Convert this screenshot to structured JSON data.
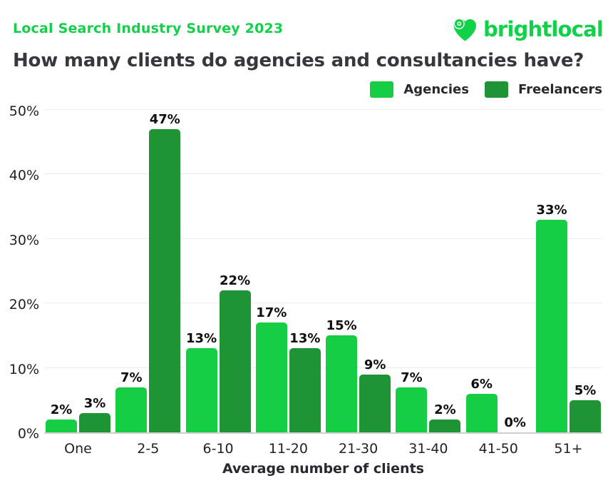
{
  "header": {
    "kicker": "Local Search Industry Survey 2023",
    "title": "How many clients do agencies and consultancies have?",
    "logo_text": "brightlocal"
  },
  "legend": [
    {
      "label": "Agencies",
      "color": "#16CE44"
    },
    {
      "label": "Freelancers",
      "color": "#1E9435"
    }
  ],
  "chart_data": {
    "type": "bar",
    "title": "How many clients do agencies and consultancies have?",
    "categories": [
      "One",
      "2-5",
      "6-10",
      "11-20",
      "21-30",
      "31-40",
      "41-50",
      "51+"
    ],
    "series": [
      {
        "name": "Agencies",
        "color": "#16CE44",
        "values": [
          2,
          7,
          13,
          17,
          15,
          7,
          6,
          33
        ]
      },
      {
        "name": "Freelancers",
        "color": "#1E9435",
        "values": [
          3,
          47,
          22,
          13,
          9,
          2,
          0,
          5
        ]
      }
    ],
    "xlabel": "Average number of clients",
    "ylabel": "",
    "ylim": [
      0,
      50
    ],
    "yticks": [
      0,
      10,
      20,
      30,
      40,
      50
    ],
    "ytick_labels": [
      "0%",
      "10%",
      "20%",
      "30%",
      "40%",
      "50%"
    ],
    "value_label_suffix": "%",
    "grid": true,
    "legend_position": "top-right"
  },
  "colors": {
    "accent_green": "#11D148",
    "agencies_green": "#16CE44",
    "freelancers_green": "#1E9435",
    "title_text": "#35383D",
    "gridline": "#ededed",
    "axis_line": "#cfcfcf"
  }
}
